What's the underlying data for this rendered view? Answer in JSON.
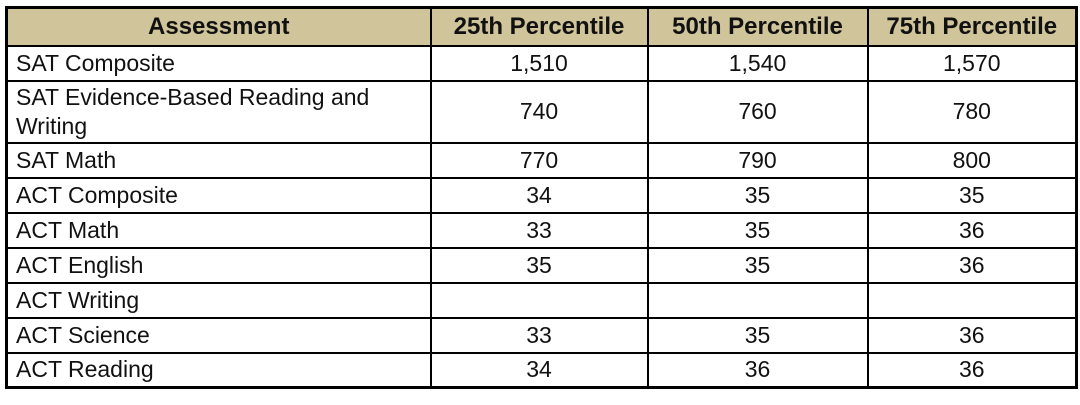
{
  "chart_data": {
    "type": "table",
    "title": "",
    "columns": [
      "Assessment",
      "25th Percentile",
      "50th Percentile",
      "75th Percentile"
    ],
    "rows": [
      [
        "SAT Composite",
        "1,510",
        "1,540",
        "1,570"
      ],
      [
        "SAT Evidence-Based Reading and Writing",
        "740",
        "760",
        "780"
      ],
      [
        "SAT Math",
        "770",
        "790",
        "800"
      ],
      [
        "ACT Composite",
        "34",
        "35",
        "35"
      ],
      [
        "ACT Math",
        "33",
        "35",
        "36"
      ],
      [
        "ACT English",
        "35",
        "35",
        "36"
      ],
      [
        "ACT Writing",
        "",
        "",
        ""
      ],
      [
        "ACT Science",
        "33",
        "35",
        "36"
      ],
      [
        "ACT Reading",
        "34",
        "36",
        "36"
      ]
    ],
    "colors": {
      "header_bg": "#cfc49a",
      "border": "#000000",
      "text": "#111111"
    },
    "layout": {
      "header_row_shaded": true,
      "grid": true,
      "first_column_align": "left",
      "value_columns_align": "center"
    }
  }
}
